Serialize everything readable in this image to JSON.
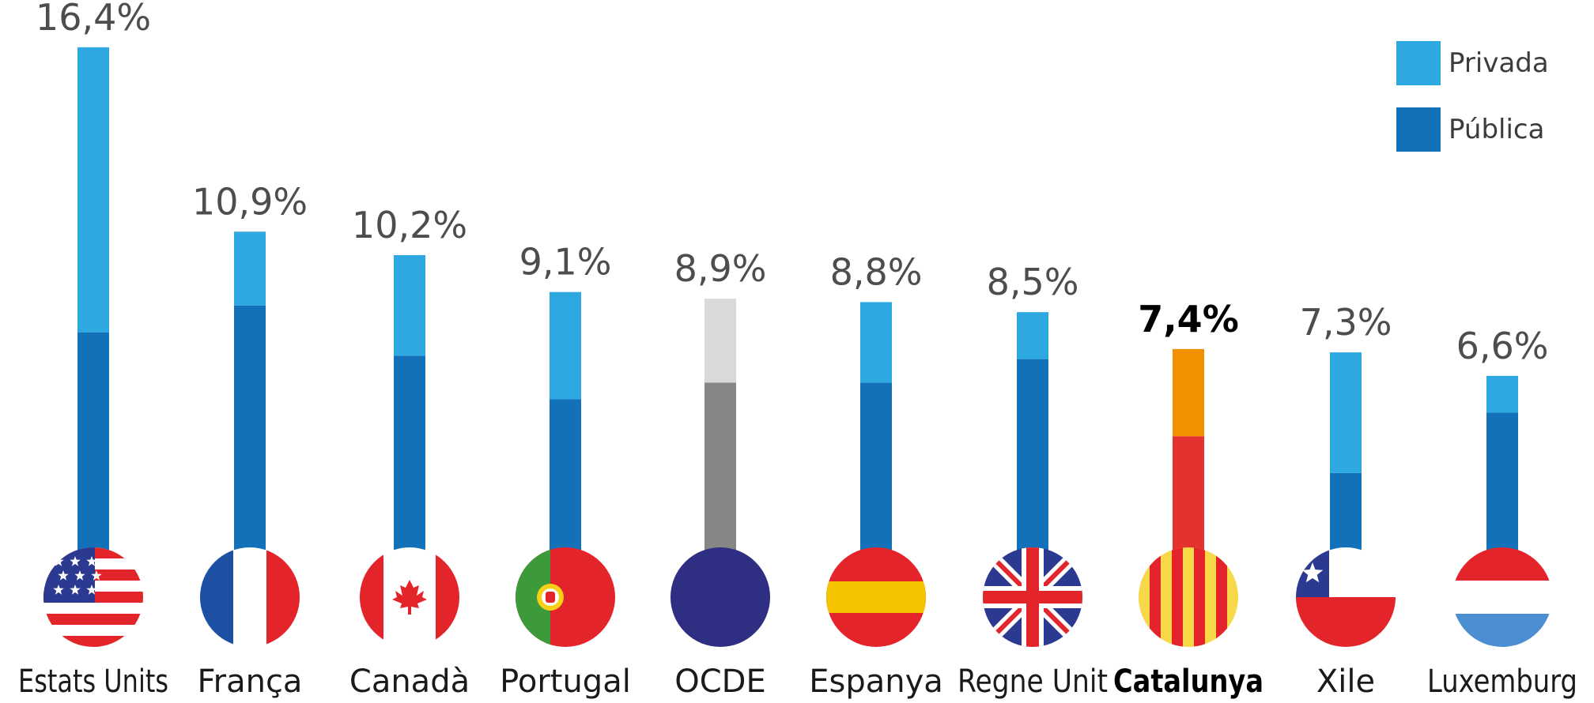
{
  "chart_data": {
    "type": "bar",
    "stacked": true,
    "categories": [
      "Estats Units",
      "França",
      "Canadà",
      "Portugal",
      "OCDE",
      "Espanya",
      "Regne Unit",
      "Catalunya",
      "Xile",
      "Luxemburg"
    ],
    "value_labels": [
      "16,4%",
      "10,9%",
      "10,2%",
      "9,1%",
      "8,9%",
      "8,8%",
      "8,5%",
      "7,4%",
      "7,3%",
      "6,6%"
    ],
    "totals": [
      16.4,
      10.9,
      10.2,
      9.1,
      8.9,
      8.8,
      8.5,
      7.4,
      7.3,
      6.6
    ],
    "series": [
      {
        "name": "Pública",
        "values": [
          7.9,
          8.7,
          7.2,
          5.9,
          6.4,
          6.4,
          7.1,
          4.8,
          3.7,
          5.5
        ]
      },
      {
        "name": "Privada",
        "values": [
          8.5,
          2.2,
          3.0,
          3.2,
          2.5,
          2.4,
          1.4,
          2.6,
          3.6,
          1.1
        ]
      }
    ],
    "highlight_category": "Catalunya",
    "flags": [
      "usa-flag-icon",
      "france-flag-icon",
      "canada-flag-icon",
      "portugal-flag-icon",
      "oecd-circle-icon",
      "spain-flag-icon",
      "uk-flag-icon",
      "catalonia-flag-icon",
      "chile-flag-icon",
      "luxembourg-flag-icon"
    ],
    "colors": {
      "publica": "#1271b8",
      "privada": "#2ea8e0",
      "oecd_publica": "#868686",
      "oecd_privada": "#d9d9d9",
      "catalunya_publica": "#e3322f",
      "catalunya_privada": "#f29100",
      "value_text": "#4d4d4d",
      "category_text": "#1a1a1a"
    },
    "legend_placement": "top-right",
    "grid": false
  },
  "legend": {
    "items": [
      {
        "label": "Privada",
        "color": "#2ea8e0"
      },
      {
        "label": "Pública",
        "color": "#1271b8"
      }
    ]
  }
}
